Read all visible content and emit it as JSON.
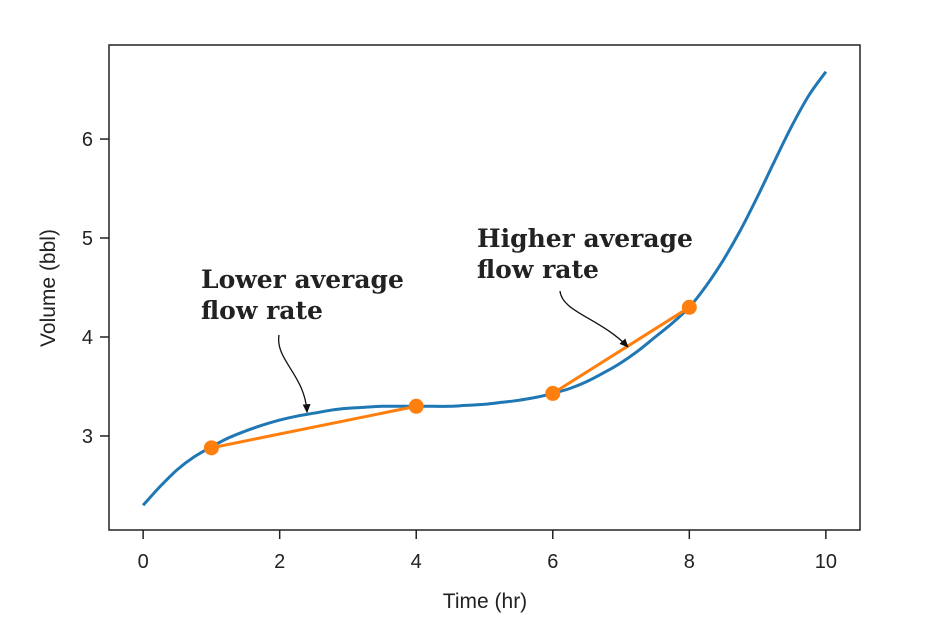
{
  "chart_data": {
    "type": "line",
    "title": "",
    "xlabel": "Time (hr)",
    "ylabel": "Volume (bbl)",
    "xlim": [
      -0.5,
      10.5
    ],
    "ylim": [
      2.05,
      6.95
    ],
    "x_ticks": [
      0,
      2,
      4,
      6,
      8,
      10
    ],
    "y_ticks": [
      3,
      4,
      5,
      6
    ],
    "grid": false,
    "legend": "none",
    "curve": {
      "x": [
        0,
        0.25,
        0.5,
        0.75,
        1,
        1.25,
        1.5,
        1.75,
        2,
        2.25,
        2.5,
        2.75,
        3,
        3.25,
        3.5,
        3.75,
        4,
        4.25,
        4.5,
        4.75,
        5,
        5.25,
        5.5,
        5.75,
        6,
        6.25,
        6.5,
        6.75,
        7,
        7.25,
        7.5,
        7.75,
        8,
        8.25,
        8.5,
        8.75,
        9,
        9.25,
        9.5,
        9.75,
        10
      ],
      "y": [
        2.3,
        2.49,
        2.66,
        2.79,
        2.89,
        2.98,
        3.05,
        3.11,
        3.16,
        3.2,
        3.23,
        3.26,
        3.28,
        3.29,
        3.3,
        3.3,
        3.3,
        3.3,
        3.3,
        3.31,
        3.32,
        3.34,
        3.36,
        3.39,
        3.43,
        3.48,
        3.55,
        3.64,
        3.74,
        3.86,
        4.0,
        4.14,
        4.3,
        4.52,
        4.78,
        5.08,
        5.42,
        5.78,
        6.13,
        6.44,
        6.68
      ],
      "color": "#1f77b4"
    },
    "segments": [
      {
        "points": [
          [
            1,
            2.88
          ],
          [
            4,
            3.3
          ]
        ],
        "color": "#ff7f0e"
      },
      {
        "points": [
          [
            6,
            3.43
          ],
          [
            8,
            4.3
          ]
        ],
        "color": "#ff7f0e"
      }
    ],
    "annotations": [
      {
        "lines": [
          "Lower average",
          "flow rate"
        ],
        "points_to": [
          2.4,
          3.24
        ]
      },
      {
        "lines": [
          "Higher average",
          "flow rate"
        ],
        "points_to": [
          7.1,
          3.9
        ]
      }
    ]
  }
}
